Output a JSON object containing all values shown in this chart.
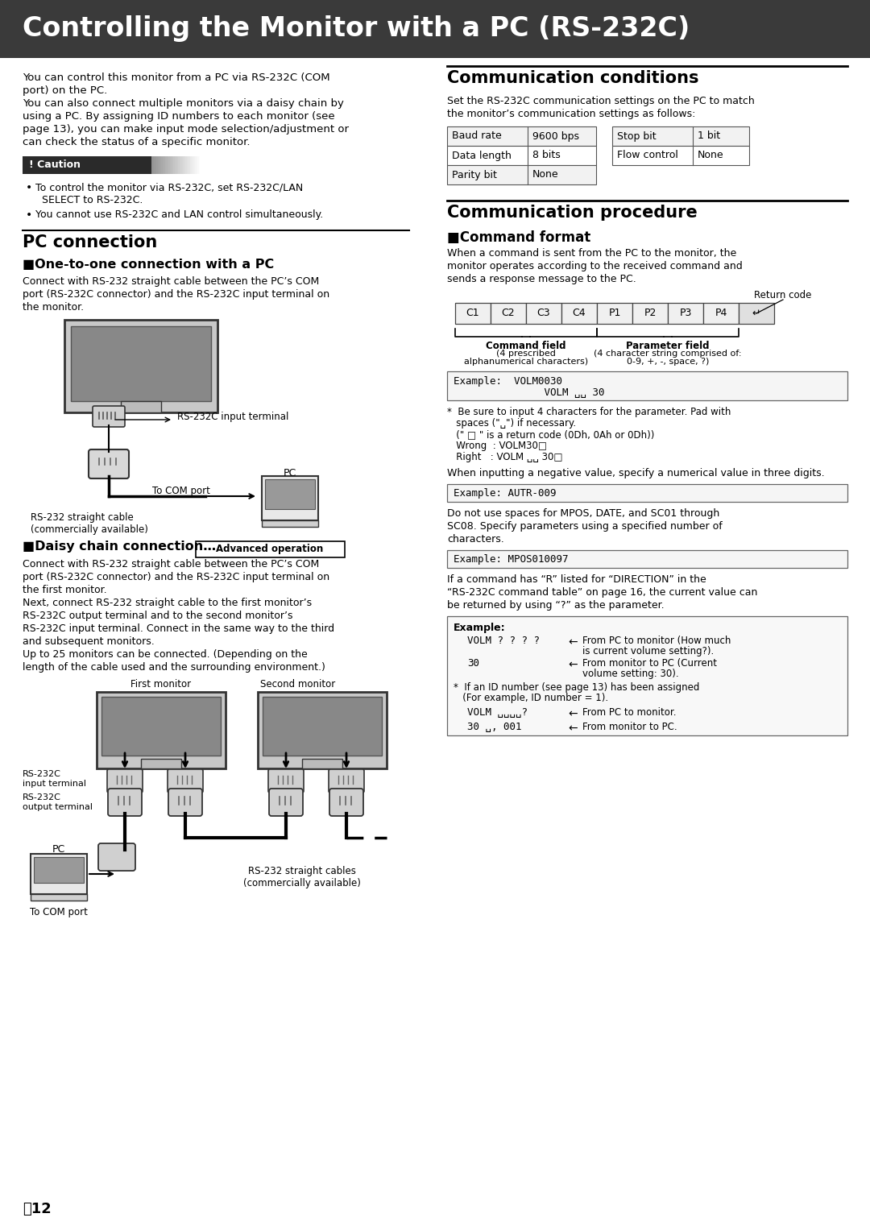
{
  "title": "Controlling the Monitor with a PC (RS-232C)",
  "title_bg": "#3a3a3a",
  "title_color": "#ffffff",
  "page_bg": "#ffffff",
  "intro_line1": "You can control this monitor from a PC via RS-232C (COM",
  "intro_line2": "port) on the PC.",
  "intro_line3": "You can also connect multiple monitors via a daisy chain by",
  "intro_line4": "using a PC. By assigning ID numbers to each monitor (see",
  "intro_line5": "page 13), you can make input mode selection/adjustment or",
  "intro_line6": "can check the status of a specific monitor.",
  "caution_label": "! Caution",
  "caution1_line1": "To control the monitor via RS-232C, set RS-232C/LAN",
  "caution1_line2": "SELECT to RS-232C.",
  "caution2": "You cannot use RS-232C and LAN control simultaneously.",
  "pc_connection_title": "PC connection",
  "one_to_one_title": "■One-to-one connection with a PC",
  "one_to_one_line1": "Connect with RS-232 straight cable between the PC’s COM",
  "one_to_one_line2": "port (RS-232C connector) and the RS-232C input terminal on",
  "one_to_one_line3": "the monitor.",
  "rs232c_input_label": "RS-232C input terminal",
  "to_com_port": "To COM port",
  "pc_label": "PC",
  "rs232_cable_label1": "RS-232 straight cable",
  "rs232_cable_label2": "(commercially available)",
  "daisy_title": "■Daisy chain connection…",
  "daisy_advanced": "Advanced operation",
  "daisy_line1": "Connect with RS-232 straight cable between the PC’s COM",
  "daisy_line2": "port (RS-232C connector) and the RS-232C input terminal on",
  "daisy_line3": "the first monitor.",
  "daisy_line4": "Next, connect RS-232 straight cable to the first monitor’s",
  "daisy_line5": "RS-232C output terminal and to the second monitor’s",
  "daisy_line6": "RS-232C input terminal. Connect in the same way to the third",
  "daisy_line7": "and subsequent monitors.",
  "daisy_line8": "Up to 25 monitors can be connected. (Depending on the",
  "daisy_line9": "length of the cable used and the surrounding environment.)",
  "first_monitor": "First monitor",
  "second_monitor": "Second monitor",
  "rs232c_input_terminal": "RS-232C\ninput terminal",
  "rs232c_output_terminal": "RS-232C\noutput terminal",
  "pc_label2": "PC",
  "to_com_port2": "To COM port",
  "rs232_cables_label1": "RS-232 straight cables",
  "rs232_cables_label2": "(commercially available)",
  "comm_conditions_title": "Communication conditions",
  "comm_conditions_line1": "Set the RS-232C communication settings on the PC to match",
  "comm_conditions_line2": "the monitor’s communication settings as follows:",
  "table1": [
    [
      "Baud rate",
      "9600 bps"
    ],
    [
      "Data length",
      "8 bits"
    ],
    [
      "Parity bit",
      "None"
    ]
  ],
  "table2": [
    [
      "Stop bit",
      "1 bit"
    ],
    [
      "Flow control",
      "None"
    ]
  ],
  "comm_procedure_title": "Communication procedure",
  "cmd_format_title": "■Command format",
  "cmd_format_line1": "When a command is sent from the PC to the monitor, the",
  "cmd_format_line2": "monitor operates according to the received command and",
  "cmd_format_line3": "sends a response message to the PC.",
  "return_code": "Return code",
  "cmd_boxes": [
    "C1",
    "C2",
    "C3",
    "C4",
    "P1",
    "P2",
    "P3",
    "P4",
    "↵"
  ],
  "cmd_field_label": "Command field",
  "cmd_field_sub1": "(4 prescribed",
  "cmd_field_sub2": "alphanumerical characters)",
  "param_field_label": "Parameter field",
  "param_field_sub1": "(4 character string comprised of:",
  "param_field_sub2": "0-9, +, -, space, ?)",
  "ex1_line1": "Example:  VOLM0030",
  "ex1_line2": "               VOLM ␣␣ 30",
  "note1_line1": "*  Be sure to input 4 characters for the parameter. Pad with",
  "note1_line2": "   spaces (\"␣\") if necessary.",
  "note1_line3": "   (\" □ \" is a return code (0Dh, 0Ah or 0Dh))",
  "note1_line4": "   Wrong  : VOLM30□",
  "note1_line5": "   Right   : VOLM ␣␣ 30□",
  "neg_line": "When inputting a negative value, specify a numerical value in three digits.",
  "ex2_text": "Example: AUTR-009",
  "mpos_line1": "Do not use spaces for MPOS, DATE, and SC01 through",
  "mpos_line2": "SC08. Specify parameters using a specified number of",
  "mpos_line3": "characters.",
  "ex3_text": "Example: MPOS010097",
  "r_dir_line1": "If a command has “R” listed for “DIRECTION” in the",
  "r_dir_line2": "“RS-232C command table” on page 16, the current value can",
  "r_dir_line3": "be returned by using “?” as the parameter.",
  "ex4_label": "Example:",
  "volm_q": "VOLM ? ? ? ?",
  "volm_q_arr": "←",
  "volm_q_desc1": "From PC to monitor (How much",
  "volm_q_desc2": "is current volume setting?).",
  "volm_r": "30",
  "volm_r_arr": "←",
  "volm_r_desc1": "From monitor to PC (Current",
  "volm_r_desc2": "volume setting: 30).",
  "id_note1": "*  If an ID number (see page 13) has been assigned",
  "id_note2": "   (For example, ID number = 1).",
  "volm_id_q": "VOLM ␣␣␣␣?",
  "volm_id_q_arr": "←",
  "volm_id_q_desc": "From PC to monitor.",
  "volm_id_r": "30 ␣, 001",
  "volm_id_r_arr": "←",
  "volm_id_r_desc": "From monitor to PC.",
  "page_label": "Ⓔ12"
}
